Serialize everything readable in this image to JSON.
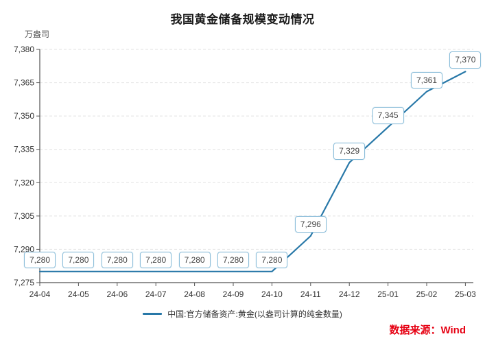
{
  "chart_data": {
    "type": "line",
    "title": "我国黄金储备规模变动情况",
    "ylabel": "万盎司",
    "xlabel": "",
    "categories": [
      "24-04",
      "24-05",
      "24-06",
      "24-07",
      "24-08",
      "24-09",
      "24-10",
      "24-11",
      "24-12",
      "25-01",
      "25-02",
      "25-03"
    ],
    "values": [
      7280,
      7280,
      7280,
      7280,
      7280,
      7280,
      7280,
      7296,
      7329,
      7345,
      7361,
      7370
    ],
    "data_labels": [
      "7,280",
      "7,280",
      "7,280",
      "7,280",
      "7,280",
      "7,280",
      "7,280",
      "7,296",
      "7,329",
      "7,345",
      "7,361",
      "7,370"
    ],
    "ylim": [
      7275,
      7380
    ],
    "ytick_step": 15,
    "ytick_labels": [
      "7,275",
      "7,290",
      "7,305",
      "7,320",
      "7,335",
      "7,350",
      "7,365",
      "7,380"
    ],
    "grid": "horizontal-dashed",
    "legend": "中国:官方储备资产:黄金(以盎司计算的纯金数量)",
    "legend_position": "bottom-center"
  },
  "source": {
    "label": "数据来源：Wind"
  },
  "colors": {
    "line": "#2878a8",
    "label_box_border": "#8bbdd9",
    "label_text": "#444444",
    "grid": "#e2e2e2",
    "axis": "#555555",
    "tick_text": "#333333",
    "title_text": "#1a1a1a",
    "source_text": "#e60012",
    "background": "#ffffff"
  }
}
